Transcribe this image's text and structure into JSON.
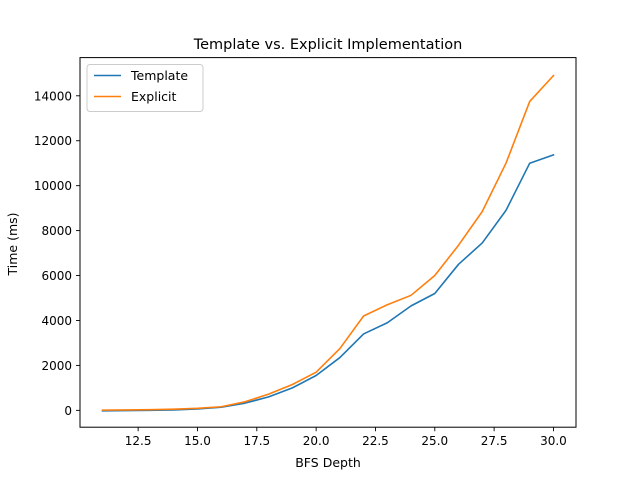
{
  "chart_data": {
    "type": "line",
    "title": "Template vs. Explicit Implementation",
    "xlabel": "BFS Depth",
    "ylabel": "Time (ms)",
    "xlim": [
      10.05,
      30.95
    ],
    "ylim": [
      -750,
      15700
    ],
    "xticks": [
      12.5,
      15.0,
      17.5,
      20.0,
      22.5,
      25.0,
      27.5,
      30.0
    ],
    "xtick_labels": [
      "12.5",
      "15.0",
      "17.5",
      "20.0",
      "22.5",
      "25.0",
      "27.5",
      "30.0"
    ],
    "yticks": [
      0,
      2000,
      4000,
      6000,
      8000,
      10000,
      12000,
      14000
    ],
    "ytick_labels": [
      "0",
      "2000",
      "4000",
      "6000",
      "8000",
      "10000",
      "12000",
      "14000"
    ],
    "grid": false,
    "legend": "top-left",
    "x": [
      11,
      12,
      13,
      14,
      15,
      16,
      17,
      18,
      19,
      20,
      21,
      22,
      23,
      24,
      25,
      26,
      27,
      28,
      29,
      30
    ],
    "series": [
      {
        "name": "Template",
        "color": "#1f77b4",
        "values": [
          -20,
          -10,
          0,
          20,
          60,
          140,
          320,
          600,
          1000,
          1550,
          2350,
          3400,
          3900,
          4650,
          5200,
          6500,
          7450,
          8900,
          11000,
          11370
        ]
      },
      {
        "name": "Explicit",
        "color": "#ff7f0e",
        "values": [
          10,
          20,
          30,
          50,
          90,
          160,
          380,
          720,
          1150,
          1700,
          2750,
          4200,
          4700,
          5120,
          6000,
          7350,
          8850,
          11000,
          13750,
          14900
        ]
      }
    ]
  }
}
